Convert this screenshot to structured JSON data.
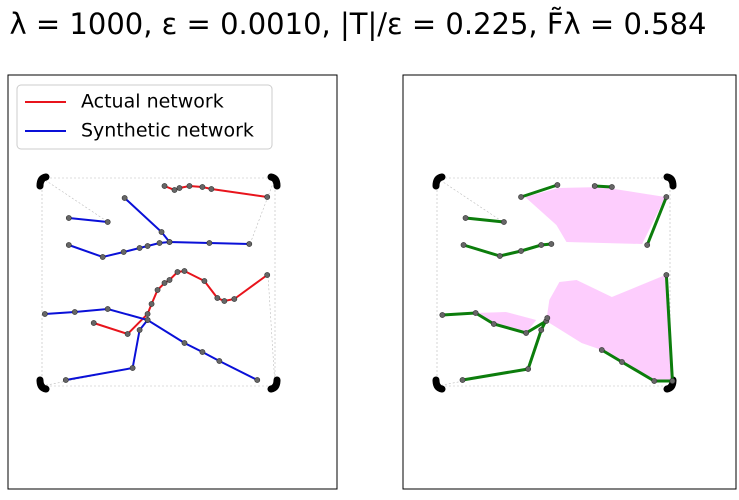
{
  "chart_data": [
    {
      "type": "network",
      "title": "λ = 1000, ε = 0.0010, |T|/ε = 0.225, F̃λ = 0.584",
      "xlim": [
        0,
        330
      ],
      "ylim": [
        0,
        414
      ],
      "legend": "upper left",
      "series": [
        {
          "name": "Actual network",
          "color": "#e8141c",
          "kind": "line",
          "segments": [
            {
              "x": [
                157,
                167,
                172,
                182,
                195,
                204,
                260
              ],
              "y": [
                303,
                299,
                301,
                303,
                302,
                300,
                292
              ]
            },
            {
              "x": [
                86,
                120,
                140,
                144,
                150,
                157,
                162,
                170,
                177,
                197,
                210,
                217,
                227,
                260
              ],
              "y": [
                166,
                155,
                175,
                185,
                199,
                206,
                209,
                217,
                218,
                208,
                191,
                188,
                190,
                214
              ]
            }
          ]
        },
        {
          "name": "Synthetic network",
          "color": "#0a10d8",
          "kind": "line",
          "segments": [
            {
              "x": [
                61,
                100
              ],
              "y": [
                271,
                267
              ]
            },
            {
              "x": [
                117,
                154,
                162,
                202,
                242
              ],
              "y": [
                291,
                257,
                247,
                246,
                245
              ]
            },
            {
              "x": [
                61,
                95,
                116,
                132,
                140,
                152,
                162
              ],
              "y": [
                244,
                232,
                237,
                241,
                243,
                246,
                247
              ]
            },
            {
              "x": [
                37,
                67,
                100,
                140,
                177,
                195,
                212,
                250
              ],
              "y": [
                175,
                177,
                180,
                169,
                146,
                137,
                128,
                109
              ]
            },
            {
              "x": [
                58,
                125,
                132,
                140
              ],
              "y": [
                109,
                121,
                159,
                169
              ]
            }
          ]
        }
      ]
    },
    {
      "type": "network",
      "xlim": [
        0,
        330
      ],
      "ylim": [
        0,
        414
      ],
      "series": [
        {
          "color": "#fdc8fd",
          "kind": "area",
          "segments": [
            {
              "x": [
                121,
                154,
                197,
                260,
                237,
                162,
                152
              ],
              "y": [
                292,
                301,
                302,
                292,
                245,
                247,
                264
              ]
            },
            {
              "x": [
                145,
                155,
                172,
                207,
                260,
                267,
                249,
                197,
                177,
                142
              ],
              "y": [
                189,
                207,
                209,
                192,
                214,
                108,
                108,
                139,
                146,
                168
              ]
            },
            {
              "x": [
                72,
                102,
                132,
                122,
                90
              ],
              "y": [
                176,
                177,
                169,
                156,
                165
              ]
            }
          ]
        },
        {
          "color": "#0c7d0c",
          "kind": "line",
          "segments": [
            {
              "x": [
                62,
                100
              ],
              "y": [
                271,
                267
              ]
            },
            {
              "x": [
                117,
                153
              ],
              "y": [
                292,
                304
              ]
            },
            {
              "x": [
                60,
                96,
                117,
                137,
                147
              ],
              "y": [
                244,
                233,
                238,
                244,
                245
              ]
            },
            {
              "x": [
                39,
                72,
                90,
                122,
                142
              ],
              "y": [
                174,
                176,
                165,
                156,
                168
              ]
            },
            {
              "x": [
                59,
                124,
                137,
                143
              ],
              "y": [
                109,
                120,
                159,
                171
              ]
            },
            {
              "x": [
                197,
                217,
                249,
                267,
                261
              ],
              "y": [
                139,
                127,
                108,
                108,
                214
              ]
            },
            {
              "x": [
                242,
                261
              ],
              "y": [
                244,
                292
              ]
            },
            {
              "x": [
                190,
                207
              ],
              "y": [
                303,
                302
              ]
            }
          ]
        }
      ]
    }
  ]
}
